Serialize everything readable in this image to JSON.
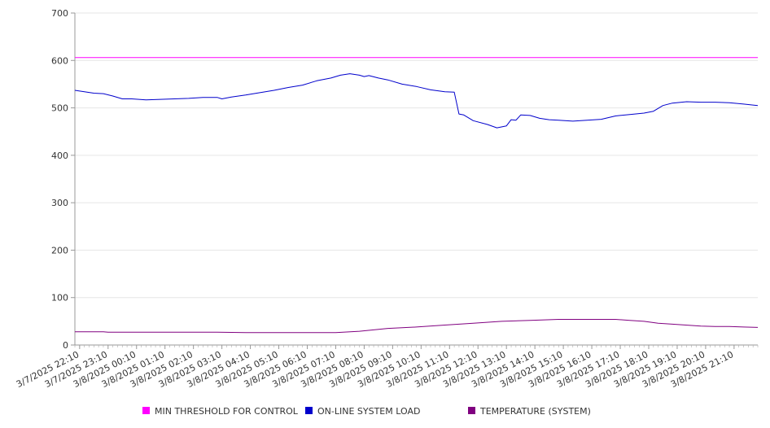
{
  "chart_data": {
    "type": "line",
    "ylim": [
      0,
      700
    ],
    "yticks": [
      0,
      100,
      200,
      300,
      400,
      500,
      600,
      700
    ],
    "x_tick_labels": [
      "3/7/2025 22:10",
      "3/7/2025 23:10",
      "3/8/2025 00:10",
      "3/8/2025 01:10",
      "3/8/2025 02:10",
      "3/8/2025 03:10",
      "3/8/2025 04:10",
      "3/8/2025 05:10",
      "3/8/2025 06:10",
      "3/8/2025 07:10",
      "3/8/2025 08:10",
      "3/8/2025 09:10",
      "3/8/2025 10:10",
      "3/8/2025 11:10",
      "3/8/2025 12:10",
      "3/8/2025 13:10",
      "3/8/2025 14:10",
      "3/8/2025 15:10",
      "3/8/2025 16:10",
      "3/8/2025 17:10",
      "3/8/2025 18:10",
      "3/8/2025 19:10",
      "3/8/2025 20:10",
      "3/8/2025 21:10"
    ],
    "x_domain": [
      "3/7/2025 22:00",
      "3/8/2025 22:00"
    ],
    "grid": true,
    "legend_position": "bottom",
    "series": [
      {
        "name": "MIN THRESHOLD FOR CONTROL",
        "color": "#ff00ff",
        "x": [
          "3/7/2025 22:00",
          "3/8/2025 22:00"
        ],
        "y": [
          606,
          606
        ]
      },
      {
        "name": "ON-LINE SYSTEM LOAD",
        "color": "#0000cc",
        "x": [
          "3/7/2025 22:00",
          "3/7/2025 22:20",
          "3/7/2025 22:40",
          "3/7/2025 23:00",
          "3/7/2025 23:20",
          "3/7/2025 23:40",
          "3/8/2025 00:00",
          "3/8/2025 00:30",
          "3/8/2025 01:00",
          "3/8/2025 01:30",
          "3/8/2025 02:00",
          "3/8/2025 02:30",
          "3/8/2025 03:00",
          "3/8/2025 03:10",
          "3/8/2025 03:30",
          "3/8/2025 04:00",
          "3/8/2025 04:30",
          "3/8/2025 05:00",
          "3/8/2025 05:30",
          "3/8/2025 06:00",
          "3/8/2025 06:30",
          "3/8/2025 07:00",
          "3/8/2025 07:20",
          "3/8/2025 07:40",
          "3/8/2025 08:00",
          "3/8/2025 08:10",
          "3/8/2025 08:20",
          "3/8/2025 08:40",
          "3/8/2025 09:00",
          "3/8/2025 09:30",
          "3/8/2025 10:00",
          "3/8/2025 10:30",
          "3/8/2025 11:00",
          "3/8/2025 11:20",
          "3/8/2025 11:30",
          "3/8/2025 11:40",
          "3/8/2025 12:00",
          "3/8/2025 12:30",
          "3/8/2025 12:50",
          "3/8/2025 13:10",
          "3/8/2025 13:20",
          "3/8/2025 13:30",
          "3/8/2025 13:40",
          "3/8/2025 14:00",
          "3/8/2025 14:20",
          "3/8/2025 14:40",
          "3/8/2025 15:00",
          "3/8/2025 15:30",
          "3/8/2025 16:00",
          "3/8/2025 16:30",
          "3/8/2025 17:00",
          "3/8/2025 17:30",
          "3/8/2025 18:00",
          "3/8/2025 18:20",
          "3/8/2025 18:40",
          "3/8/2025 19:00",
          "3/8/2025 19:30",
          "3/8/2025 20:00",
          "3/8/2025 20:30",
          "3/8/2025 21:00",
          "3/8/2025 21:30",
          "3/8/2025 22:00"
        ],
        "y": [
          537,
          534,
          531,
          530,
          525,
          519,
          519,
          517,
          518,
          519,
          520,
          522,
          522,
          519,
          523,
          527,
          532,
          537,
          543,
          548,
          557,
          563,
          569,
          572,
          569,
          566,
          568,
          563,
          559,
          550,
          545,
          538,
          534,
          533,
          487,
          485,
          473,
          465,
          458,
          462,
          475,
          474,
          485,
          484,
          478,
          475,
          474,
          472,
          474,
          476,
          483,
          486,
          489,
          493,
          505,
          510,
          513,
          512,
          512,
          511,
          508,
          505
        ]
      },
      {
        "name": "TEMPERATURE (SYSTEM)",
        "color": "#800080",
        "x": [
          "3/7/2025 22:00",
          "3/7/2025 23:00",
          "3/7/2025 23:10",
          "3/8/2025 01:00",
          "3/8/2025 03:00",
          "3/8/2025 04:00",
          "3/8/2025 06:00",
          "3/8/2025 07:10",
          "3/8/2025 08:00",
          "3/8/2025 09:00",
          "3/8/2025 10:00",
          "3/8/2025 11:00",
          "3/8/2025 12:00",
          "3/8/2025 13:00",
          "3/8/2025 14:00",
          "3/8/2025 15:00",
          "3/8/2025 16:00",
          "3/8/2025 17:00",
          "3/8/2025 17:30",
          "3/8/2025 18:00",
          "3/8/2025 18:30",
          "3/8/2025 19:00",
          "3/8/2025 20:00",
          "3/8/2025 20:30",
          "3/8/2025 21:00",
          "3/8/2025 21:30",
          "3/8/2025 22:00"
        ],
        "y": [
          28,
          28,
          27,
          27,
          27,
          26,
          26,
          26,
          29,
          35,
          38,
          42,
          46,
          50,
          52,
          54,
          54,
          54,
          52,
          50,
          46,
          44,
          40,
          39,
          39,
          38,
          37
        ]
      }
    ]
  }
}
